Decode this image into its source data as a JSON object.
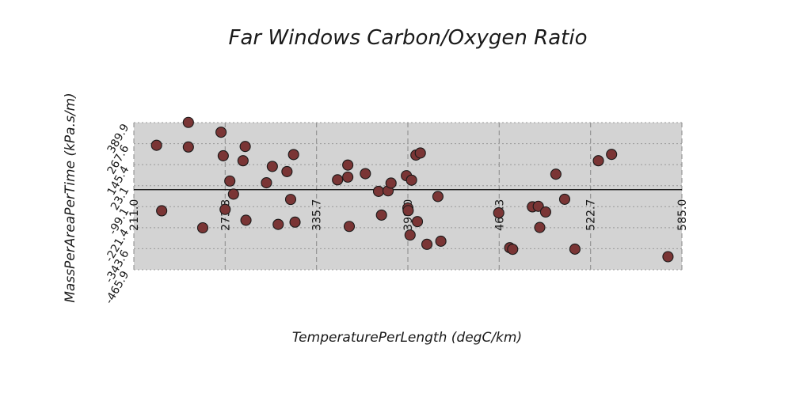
{
  "chart_data": {
    "type": "scatter",
    "title": "Far Windows Carbon/Oxygen Ratio",
    "xlabel": "TemperaturePerLength (degC/km)",
    "ylabel": "MassPerAreaPerTime (kPa.s/m)",
    "xlim": [
      211.0,
      585.0
    ],
    "ylim": [
      -465.9,
      389.9
    ],
    "x_ticks": [
      "211.0",
      "273.3",
      "335.7",
      "398.0",
      "460.3",
      "522.7",
      "585.0"
    ],
    "y_ticks": [
      "389.9",
      "267.6",
      "145.4",
      "23.1",
      "-99.1",
      "-221.4",
      "-343.6",
      "-465.9"
    ],
    "grid": true,
    "marker_color": "#7a3535",
    "plot_background": "#d3d3d3",
    "points": [
      {
        "x": 226.5,
        "y": 258.0
      },
      {
        "x": 230.0,
        "y": -123.0
      },
      {
        "x": 248.2,
        "y": 391.0
      },
      {
        "x": 248.2,
        "y": 248.0
      },
      {
        "x": 258.0,
        "y": -222.0
      },
      {
        "x": 270.5,
        "y": 334.0
      },
      {
        "x": 272.0,
        "y": 197.0
      },
      {
        "x": 273.3,
        "y": -115.0
      },
      {
        "x": 276.5,
        "y": 50.0
      },
      {
        "x": 279.0,
        "y": -26.0
      },
      {
        "x": 285.5,
        "y": 168.0
      },
      {
        "x": 287.0,
        "y": 251.0
      },
      {
        "x": 287.5,
        "y": -178.0
      },
      {
        "x": 301.5,
        "y": 40.0
      },
      {
        "x": 305.5,
        "y": 135.0
      },
      {
        "x": 309.5,
        "y": -202.0
      },
      {
        "x": 315.5,
        "y": 105.0
      },
      {
        "x": 318.0,
        "y": -57.0
      },
      {
        "x": 320.0,
        "y": 204.0
      },
      {
        "x": 321.0,
        "y": -189.0
      },
      {
        "x": 350.0,
        "y": 57.0
      },
      {
        "x": 357.0,
        "y": 143.0
      },
      {
        "x": 357.0,
        "y": 73.0
      },
      {
        "x": 358.0,
        "y": -214.0
      },
      {
        "x": 369.0,
        "y": 93.0
      },
      {
        "x": 378.0,
        "y": -10.0
      },
      {
        "x": 380.0,
        "y": -148.0
      },
      {
        "x": 384.5,
        "y": -7.0
      },
      {
        "x": 386.5,
        "y": 38.0
      },
      {
        "x": 397.0,
        "y": 81.0
      },
      {
        "x": 398.0,
        "y": -107.0
      },
      {
        "x": 398.2,
        "y": -122.0
      },
      {
        "x": 399.5,
        "y": -264.0
      },
      {
        "x": 400.5,
        "y": 55.0
      },
      {
        "x": 403.5,
        "y": 201.0
      },
      {
        "x": 404.5,
        "y": -186.0
      },
      {
        "x": 406.5,
        "y": 213.0
      },
      {
        "x": 411.0,
        "y": -318.0
      },
      {
        "x": 418.5,
        "y": -40.0
      },
      {
        "x": 420.5,
        "y": -300.0
      },
      {
        "x": 460.0,
        "y": -135.0
      },
      {
        "x": 467.5,
        "y": -338.0
      },
      {
        "x": 469.5,
        "y": -347.0
      },
      {
        "x": 483.0,
        "y": -100.0
      },
      {
        "x": 487.0,
        "y": -97.0
      },
      {
        "x": 488.0,
        "y": -220.0
      },
      {
        "x": 492.0,
        "y": -130.0
      },
      {
        "x": 499.0,
        "y": 90.0
      },
      {
        "x": 505.0,
        "y": -56.0
      },
      {
        "x": 512.0,
        "y": -346.0
      },
      {
        "x": 528.0,
        "y": 168.0
      },
      {
        "x": 537.0,
        "y": 205.0
      },
      {
        "x": 575.5,
        "y": -390.0
      }
    ]
  }
}
